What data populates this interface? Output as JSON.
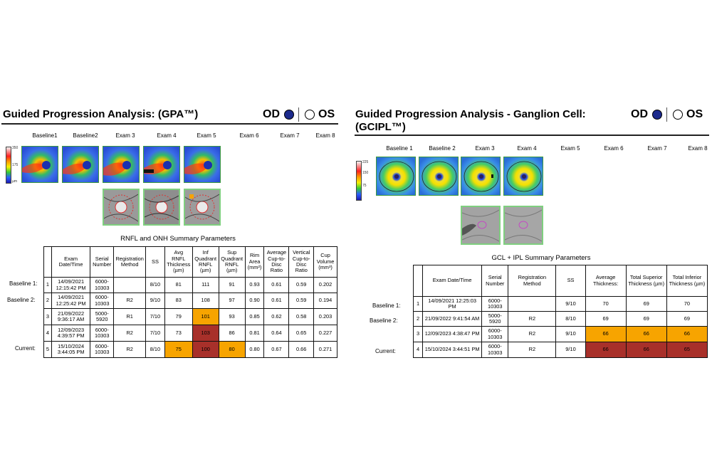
{
  "left": {
    "title": "Guided Progression Analysis: (GPA™)",
    "eye_od": "OD",
    "eye_os": "OS",
    "columns": [
      "Baseline1",
      "Baseline2",
      "Exam 3",
      "Exam 4",
      "Exam 5",
      "Exam 6",
      "Exam 7",
      "Exam 8"
    ],
    "scale": {
      "top": "350",
      "mid": "175",
      "unit": "µm"
    },
    "table_title": "RNFL and ONH Summary Parameters",
    "headers": [
      "Exam Date/Time",
      "Serial Number",
      "Registration Method",
      "SS",
      "Avg RNFL Thickness (µm)",
      "Inf Quadrant RNFL (µm)",
      "Sup Quadrant RNFL (µm)",
      "Rim Area (mm²)",
      "Average Cup-to-Disc Ratio",
      "Vertical Cup-to-Disc Ratio",
      "Cup Volume (mm³)"
    ],
    "row_labels": [
      "Baseline 1:",
      "Baseline 2:",
      "",
      "",
      "Current:"
    ],
    "rows": [
      {
        "n": "1",
        "date": "14/09/2021 12:15:42 PM",
        "serial": "6000-10303",
        "reg": "",
        "ss": "8/10",
        "avg": "81",
        "inf": "111",
        "sup": "91",
        "rim": "0.93",
        "acd": "0.61",
        "vcd": "0.59",
        "cup": "0.202"
      },
      {
        "n": "2",
        "date": "14/09/2021 12:25:42 PM",
        "serial": "6000-10303",
        "reg": "R2",
        "ss": "9/10",
        "avg": "83",
        "inf": "108",
        "sup": "97",
        "rim": "0.90",
        "acd": "0.61",
        "vcd": "0.59",
        "cup": "0.194"
      },
      {
        "n": "3",
        "date": "21/09/2022 9:36:17 AM",
        "serial": "5000-5920",
        "reg": "R1",
        "ss": "7/10",
        "avg": "79",
        "inf": "101",
        "sup": "93",
        "rim": "0.85",
        "acd": "0.62",
        "vcd": "0.58",
        "cup": "0.203"
      },
      {
        "n": "4",
        "date": "12/09/2023 4:39:57 PM",
        "serial": "6000-10303",
        "reg": "R2",
        "ss": "7/10",
        "avg": "73",
        "inf": "103",
        "sup": "86",
        "rim": "0.81",
        "acd": "0.64",
        "vcd": "0.65",
        "cup": "0.227"
      },
      {
        "n": "5",
        "date": "15/10/2024 3:44:05 PM",
        "serial": "6000-10303",
        "reg": "R2",
        "ss": "8/10",
        "avg": "75",
        "inf": "100",
        "sup": "80",
        "rim": "0.80",
        "acd": "0.67",
        "vcd": "0.66",
        "cup": "0.271"
      }
    ],
    "highlight_colors": {
      "orange": "#f7a400",
      "red": "#a8302a"
    }
  },
  "right": {
    "title_line1": "Guided Progression Analysis - Ganglion Cell:",
    "title_line2": "(GCIPL™)",
    "eye_od": "OD",
    "eye_os": "OS",
    "columns": [
      "Baseline 1",
      "Baseline 2",
      "Exam 3",
      "Exam 4",
      "Exam 5",
      "Exam 6",
      "Exam 7",
      "Exam 8"
    ],
    "scale": {
      "top": "225",
      "mid": "150",
      "low": "75"
    },
    "table_title": "GCL + IPL Summary Parameters",
    "headers": [
      "Exam Date/Time",
      "Serial Number",
      "Registration Method",
      "SS",
      "Average Thickness:",
      "Total Superior Thickness (µm)",
      "Total Inferior Thickness (µm)"
    ],
    "row_labels": [
      "Baseline 1:",
      "Baseline 2:",
      "",
      "Current:"
    ],
    "rows": [
      {
        "n": "1",
        "date": "14/09/2021 12:25:03 PM",
        "serial": "6000-10303",
        "reg": "",
        "ss": "9/10",
        "avg": "70",
        "sup": "69",
        "inf": "70"
      },
      {
        "n": "2",
        "date": "21/09/2022 9:41:54 AM",
        "serial": "5000-5920",
        "reg": "R2",
        "ss": "8/10",
        "avg": "69",
        "sup": "69",
        "inf": "69"
      },
      {
        "n": "3",
        "date": "12/09/2023 4:38:47 PM",
        "serial": "6000-10303",
        "reg": "R2",
        "ss": "9/10",
        "avg": "66",
        "sup": "66",
        "inf": "66"
      },
      {
        "n": "4",
        "date": "15/10/2024 3:44:51 PM",
        "serial": "6000-10303",
        "reg": "R2",
        "ss": "9/10",
        "avg": "66",
        "sup": "66",
        "inf": "65"
      }
    ]
  }
}
